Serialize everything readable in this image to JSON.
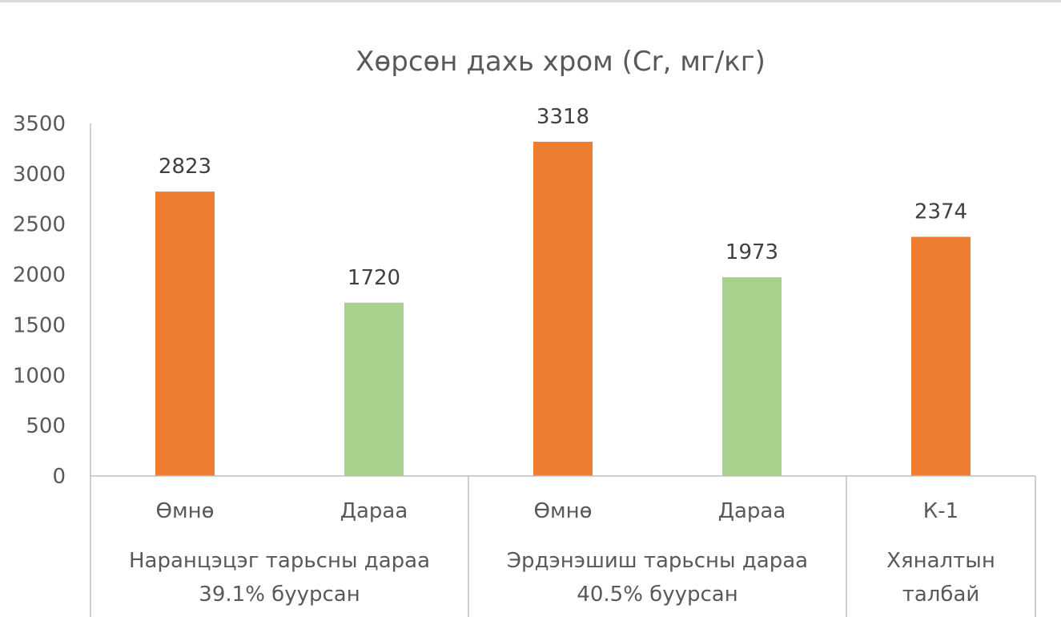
{
  "chart_data": {
    "type": "bar",
    "title": "Хөрсөн дахь хром (Cr, мг/кг)",
    "ylim": [
      0,
      3500
    ],
    "yticks": [
      0,
      500,
      1000,
      1500,
      2000,
      2500,
      3000,
      3500
    ],
    "grid": false,
    "legend": "none",
    "colors": {
      "before": "#ED7D31",
      "after": "#A9D18E",
      "axis": "#bfbfbf",
      "text": "#595959"
    },
    "categories": [
      "Өмнө",
      "Дараа",
      "Өмнө",
      "Дараа",
      "К-1"
    ],
    "values": [
      2823,
      1720,
      3318,
      1973,
      2374
    ],
    "bar_kind": [
      "before",
      "after",
      "before",
      "after",
      "before"
    ],
    "groups": [
      {
        "lines": [
          "Наранцэцэг тарьсны дараа",
          "39.1% буурсан"
        ],
        "span": 2
      },
      {
        "lines": [
          "Эрдэнэшиш тарьсны дараа",
          "40.5% буурсан"
        ],
        "span": 2
      },
      {
        "lines": [
          "Хяналтын",
          "талбай"
        ],
        "span": 1
      }
    ]
  }
}
